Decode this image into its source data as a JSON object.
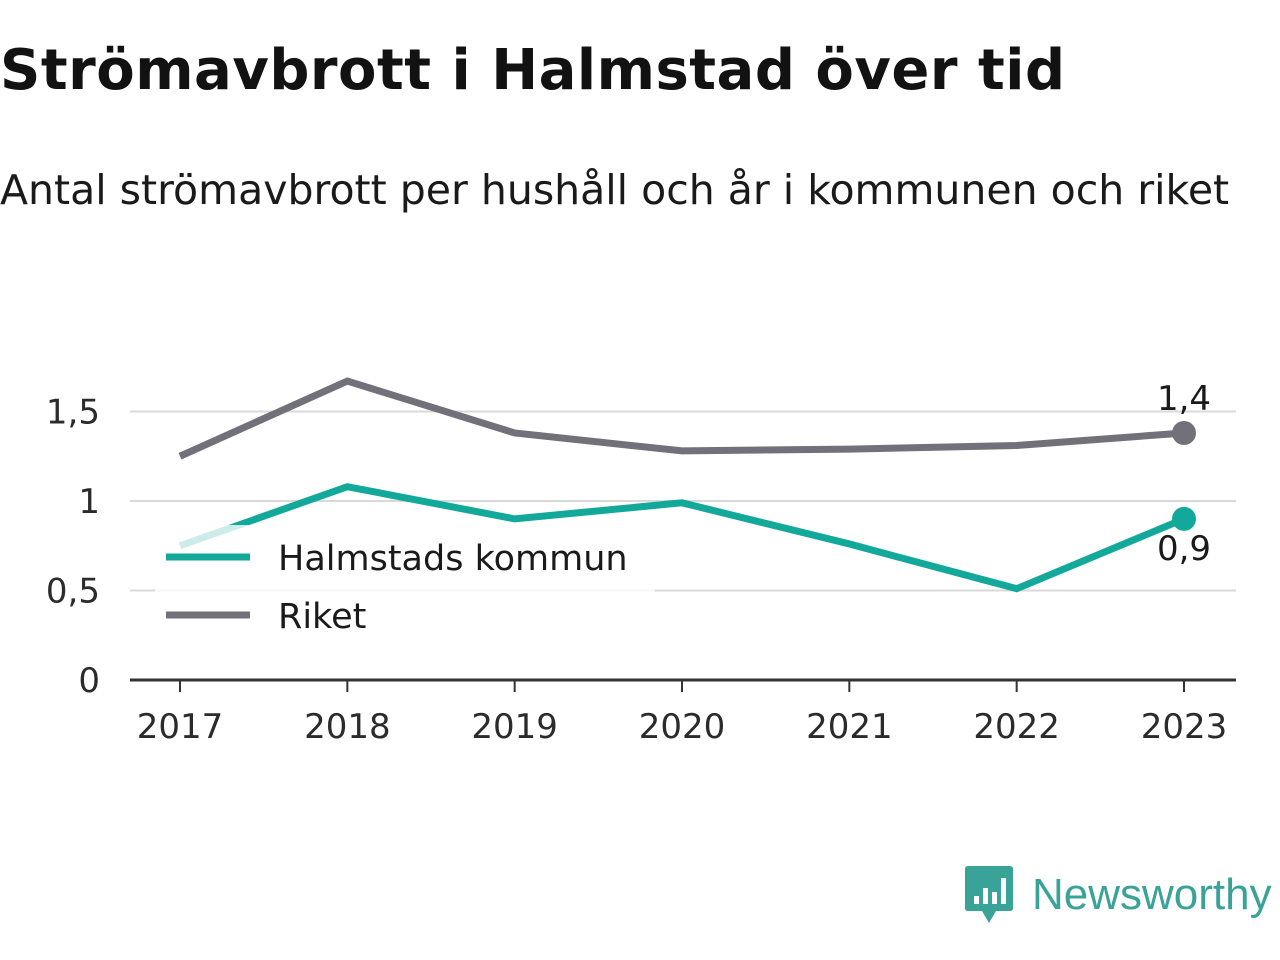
{
  "header": {
    "title": "Strömavbrott i Halmstad över tid",
    "subtitle": "Antal strömavbrott per hushåll och år i kommunen och riket"
  },
  "brand": {
    "name": "Newsworthy",
    "icon": "newsworthy-logo-icon",
    "color": "#3aa398"
  },
  "chart_data": {
    "type": "line",
    "title": "Strömavbrott i Halmstad över tid",
    "subtitle": "Antal strömavbrott per hushåll och år i kommunen och riket",
    "x": [
      "2017",
      "2018",
      "2019",
      "2020",
      "2021",
      "2022",
      "2023"
    ],
    "yticks": [
      0,
      0.5,
      1,
      1.5
    ],
    "ytick_labels": [
      "0",
      "0,5",
      "1",
      "1,5"
    ],
    "ylim": [
      0,
      1.7
    ],
    "grid": true,
    "legend_position": "left",
    "series": [
      {
        "name": "Halmstads kommun",
        "color": "#12a89a",
        "values": [
          0.75,
          1.08,
          0.9,
          0.99,
          0.76,
          0.51,
          0.9
        ],
        "end_label": "0,9"
      },
      {
        "name": "Riket",
        "color": "#727078",
        "values": [
          1.25,
          1.67,
          1.38,
          1.28,
          1.29,
          1.31,
          1.38
        ],
        "end_label": "1,4"
      }
    ]
  }
}
